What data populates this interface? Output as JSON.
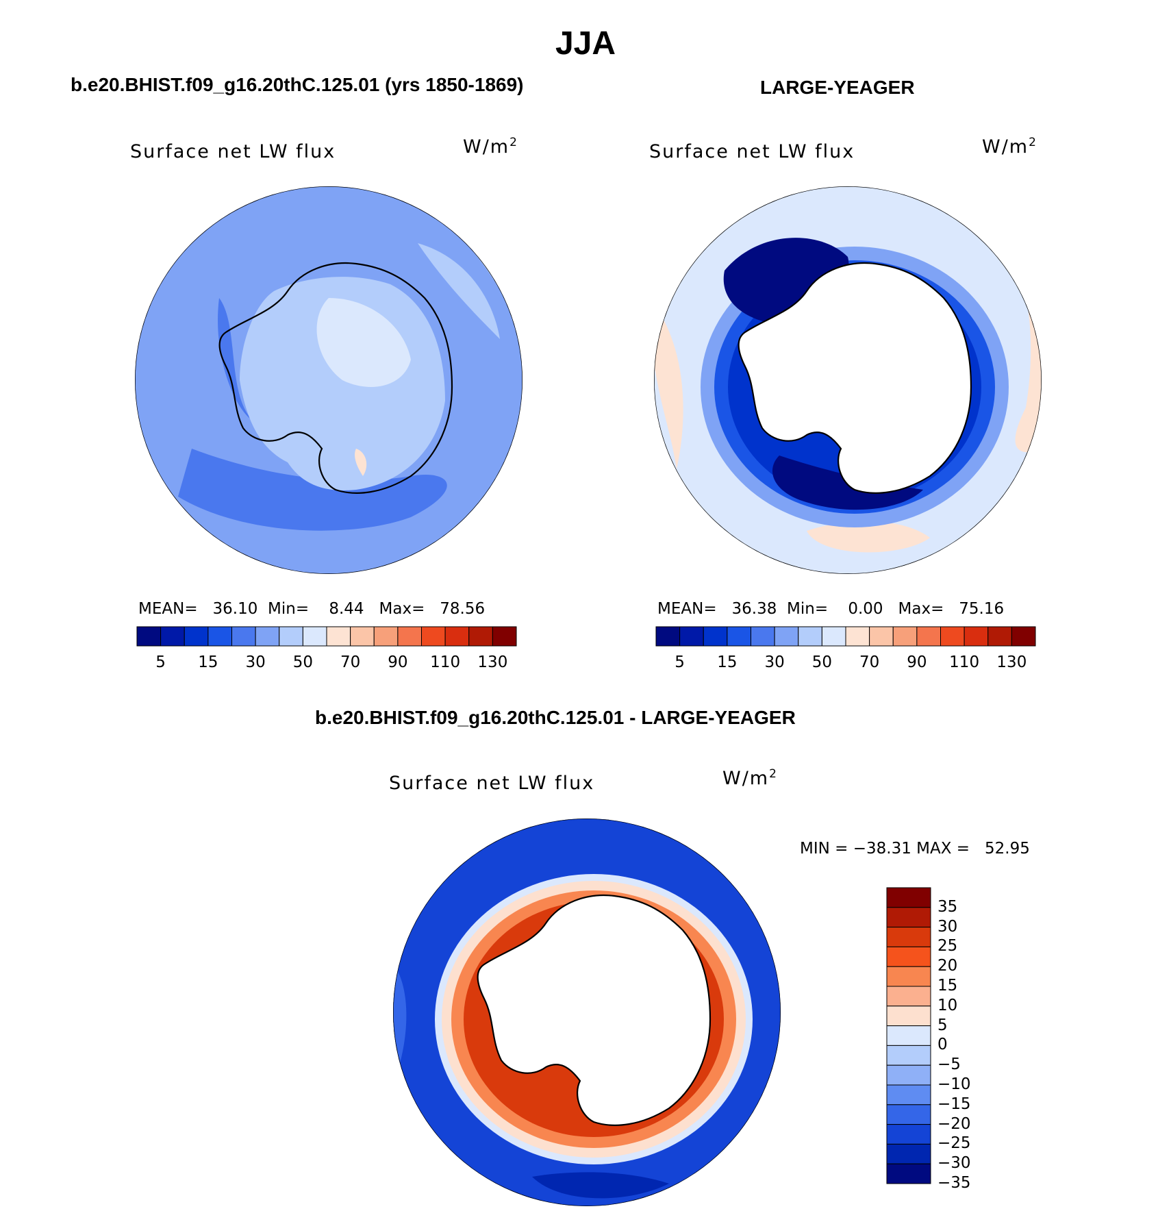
{
  "main_title": "JJA",
  "panels": [
    {
      "case_title": "b.e20.BHIST.f09_g16.20thC.125.01 (yrs 1850-1869)",
      "variable": "Surface net LW flux",
      "units": "W/m",
      "units_sup": "2",
      "stats": {
        "mean_label": "MEAN=",
        "mean": "36.10",
        "min_label": "Min=",
        "min": "8.44",
        "max_label": "Max=",
        "max": "78.56"
      }
    },
    {
      "case_title": "LARGE-YEAGER",
      "variable": "Surface net LW flux",
      "units": "W/m",
      "units_sup": "2",
      "stats": {
        "mean_label": "MEAN=",
        "mean": "36.38",
        "min_label": "Min=",
        "min": "0.00",
        "max_label": "Max=",
        "max": "75.16"
      }
    },
    {
      "case_title": "b.e20.BHIST.f09_g16.20thC.125.01 - LARGE-YEAGER",
      "variable": "Surface net LW flux",
      "units": "W/m",
      "units_sup": "2",
      "minmax": "MIN = −38.31 MAX =   52.95"
    }
  ],
  "top_colorbar": {
    "colors": [
      "#000a80",
      "#0019a8",
      "#0033cc",
      "#1a55e6",
      "#4a78ee",
      "#7fa3f5",
      "#b3cdfb",
      "#dbe8fd",
      "#fde3d3",
      "#fbc5a8",
      "#f7a07a",
      "#f4754d",
      "#ee4a1f",
      "#d92e0f",
      "#b01a05",
      "#800000"
    ],
    "tick_labels": [
      "5",
      "15",
      "30",
      "50",
      "70",
      "90",
      "110",
      "130"
    ]
  },
  "diff_colorbar": {
    "colors": [
      "#800000",
      "#b01a05",
      "#d93a0c",
      "#f5531c",
      "#f88650",
      "#fbb08f",
      "#fde0cf",
      "#dbe8fd",
      "#b3cdfb",
      "#8fb0f7",
      "#5f8cf2",
      "#3466e8",
      "#1444d6",
      "#0026b0",
      "#000a80"
    ],
    "tick_labels": [
      "35",
      "30",
      "25",
      "20",
      "15",
      "10",
      "5",
      "0",
      "−5",
      "−10",
      "−15",
      "−20",
      "−25",
      "−30",
      "−35"
    ]
  },
  "map_colors": {
    "land_mask": "#ffffff",
    "coast": "#000000"
  }
}
